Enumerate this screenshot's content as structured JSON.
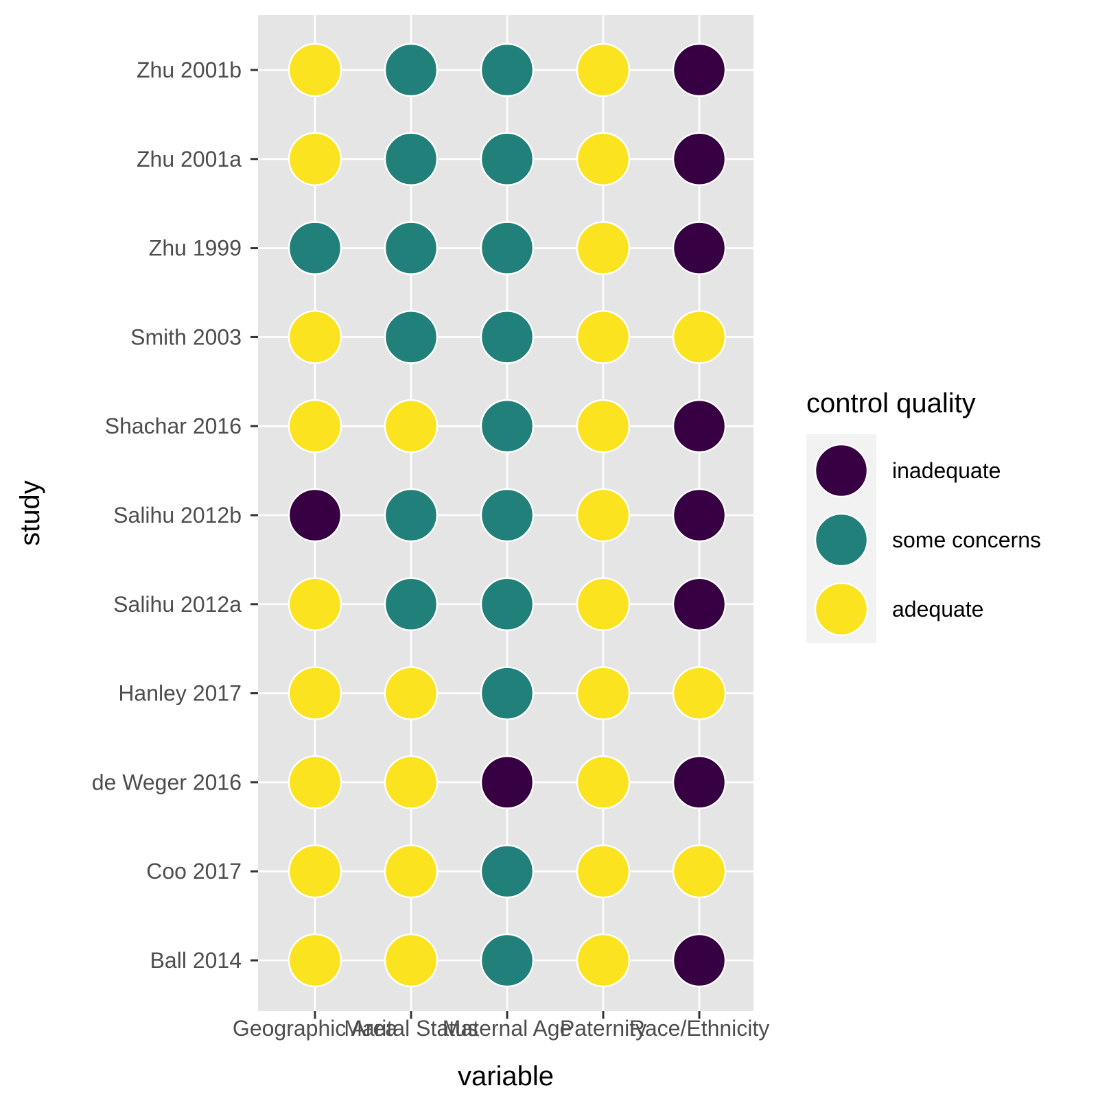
{
  "chart_data": {
    "type": "scatter",
    "title": "",
    "xlabel": "variable",
    "ylabel": "study",
    "x_categories": [
      "Geographic Area",
      "Marital Status",
      "Maternal Age",
      "Paternity",
      "Race/Ethnicity"
    ],
    "y_categories": [
      "Ball 2014",
      "Coo 2017",
      "de Weger 2016",
      "Hanley 2017",
      "Salihu 2012a",
      "Salihu 2012b",
      "Shachar 2016",
      "Smith 2003",
      "Zhu 1999",
      "Zhu 2001a",
      "Zhu 2001b"
    ],
    "legend": {
      "title": "control quality",
      "placement": "right",
      "levels": [
        {
          "label": "inadequate",
          "color": "#360043"
        },
        {
          "label": "some concerns",
          "color": "#21807a"
        },
        {
          "label": "adequate",
          "color": "#fbe31f"
        }
      ]
    },
    "grid": true,
    "panel_background": "#e5e5e5",
    "grid_color": "#ffffff",
    "points": [
      {
        "study": "Zhu 2001b",
        "values": [
          "adequate",
          "some concerns",
          "some concerns",
          "adequate",
          "inadequate"
        ]
      },
      {
        "study": "Zhu 2001a",
        "values": [
          "adequate",
          "some concerns",
          "some concerns",
          "adequate",
          "inadequate"
        ]
      },
      {
        "study": "Zhu 1999",
        "values": [
          "some concerns",
          "some concerns",
          "some concerns",
          "adequate",
          "inadequate"
        ]
      },
      {
        "study": "Smith 2003",
        "values": [
          "adequate",
          "some concerns",
          "some concerns",
          "adequate",
          "adequate"
        ]
      },
      {
        "study": "Shachar 2016",
        "values": [
          "adequate",
          "adequate",
          "some concerns",
          "adequate",
          "inadequate"
        ]
      },
      {
        "study": "Salihu 2012b",
        "values": [
          "inadequate",
          "some concerns",
          "some concerns",
          "adequate",
          "inadequate"
        ]
      },
      {
        "study": "Salihu 2012a",
        "values": [
          "adequate",
          "some concerns",
          "some concerns",
          "adequate",
          "inadequate"
        ]
      },
      {
        "study": "Hanley 2017",
        "values": [
          "adequate",
          "adequate",
          "some concerns",
          "adequate",
          "adequate"
        ]
      },
      {
        "study": "de Weger 2016",
        "values": [
          "adequate",
          "adequate",
          "inadequate",
          "adequate",
          "inadequate"
        ]
      },
      {
        "study": "Coo 2017",
        "values": [
          "adequate",
          "adequate",
          "some concerns",
          "adequate",
          "adequate"
        ]
      },
      {
        "study": "Ball 2014",
        "values": [
          "adequate",
          "adequate",
          "some concerns",
          "adequate",
          "inadequate"
        ]
      }
    ]
  }
}
